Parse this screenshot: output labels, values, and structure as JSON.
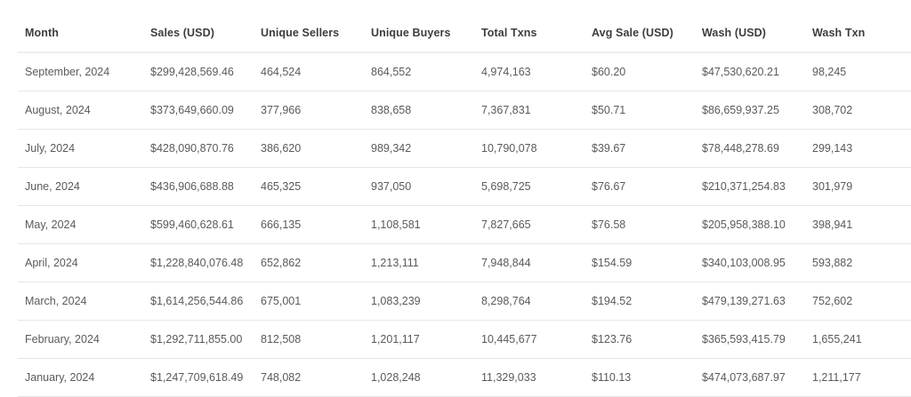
{
  "table": {
    "columns": [
      "Month",
      "Sales (USD)",
      "Unique Sellers",
      "Unique Buyers",
      "Total Txns",
      "Avg Sale (USD)",
      "Wash (USD)",
      "Wash Txn"
    ],
    "rows": [
      [
        "September, 2024",
        "$299,428,569.46",
        "464,524",
        "864,552",
        "4,974,163",
        "$60.20",
        "$47,530,620.21",
        "98,245"
      ],
      [
        "August, 2024",
        "$373,649,660.09",
        "377,966",
        "838,658",
        "7,367,831",
        "$50.71",
        "$86,659,937.25",
        "308,702"
      ],
      [
        "July, 2024",
        "$428,090,870.76",
        "386,620",
        "989,342",
        "10,790,078",
        "$39.67",
        "$78,448,278.69",
        "299,143"
      ],
      [
        "June, 2024",
        "$436,906,688.88",
        "465,325",
        "937,050",
        "5,698,725",
        "$76.67",
        "$210,371,254.83",
        "301,979"
      ],
      [
        "May, 2024",
        "$599,460,628.61",
        "666,135",
        "1,108,581",
        "7,827,665",
        "$76.58",
        "$205,958,388.10",
        "398,941"
      ],
      [
        "April, 2024",
        "$1,228,840,076.48",
        "652,862",
        "1,213,111",
        "7,948,844",
        "$154.59",
        "$340,103,008.95",
        "593,882"
      ],
      [
        "March, 2024",
        "$1,614,256,544.86",
        "675,001",
        "1,083,239",
        "8,298,764",
        "$194.52",
        "$479,139,271.63",
        "752,602"
      ],
      [
        "February, 2024",
        "$1,292,711,855.00",
        "812,508",
        "1,201,117",
        "10,445,677",
        "$123.76",
        "$365,593,415.79",
        "1,655,241"
      ],
      [
        "January, 2024",
        "$1,247,709,618.49",
        "748,082",
        "1,028,248",
        "11,329,033",
        "$110.13",
        "$474,073,687.97",
        "1,211,177"
      ]
    ]
  }
}
